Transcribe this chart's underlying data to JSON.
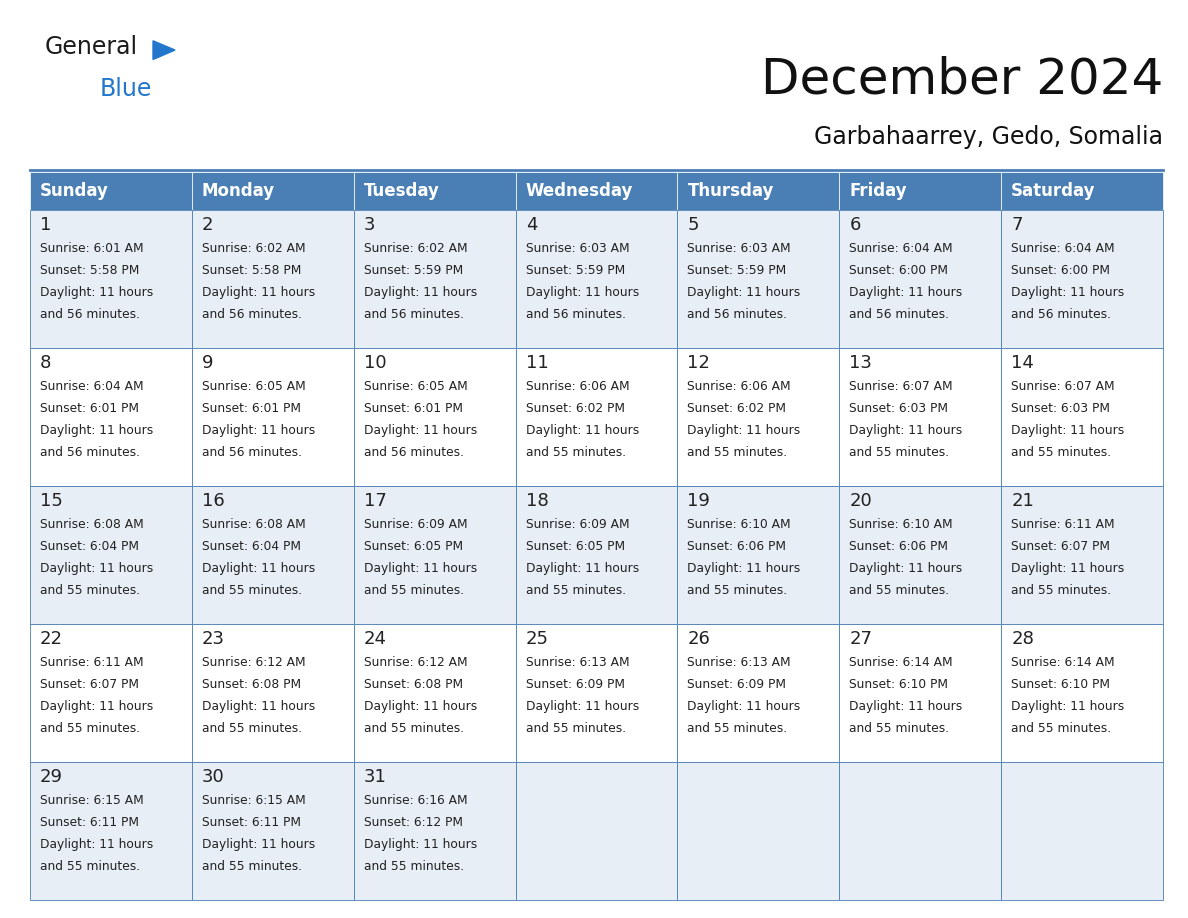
{
  "title": "December 2024",
  "subtitle": "Garbahaarrey, Gedo, Somalia",
  "header_color": "#4a7fb5",
  "header_text_color": "#ffffff",
  "row0_bg": "#e8eef5",
  "row1_bg": "#ffffff",
  "border_color": "#4a7fb5",
  "text_color": "#222222",
  "day_names": [
    "Sunday",
    "Monday",
    "Tuesday",
    "Wednesday",
    "Thursday",
    "Friday",
    "Saturday"
  ],
  "days_data": [
    {
      "day": 1,
      "col": 0,
      "row": 0,
      "sunrise": "6:01 AM",
      "sunset": "5:58 PM",
      "dl_hours": "11",
      "dl_min": "56"
    },
    {
      "day": 2,
      "col": 1,
      "row": 0,
      "sunrise": "6:02 AM",
      "sunset": "5:58 PM",
      "dl_hours": "11",
      "dl_min": "56"
    },
    {
      "day": 3,
      "col": 2,
      "row": 0,
      "sunrise": "6:02 AM",
      "sunset": "5:59 PM",
      "dl_hours": "11",
      "dl_min": "56"
    },
    {
      "day": 4,
      "col": 3,
      "row": 0,
      "sunrise": "6:03 AM",
      "sunset": "5:59 PM",
      "dl_hours": "11",
      "dl_min": "56"
    },
    {
      "day": 5,
      "col": 4,
      "row": 0,
      "sunrise": "6:03 AM",
      "sunset": "5:59 PM",
      "dl_hours": "11",
      "dl_min": "56"
    },
    {
      "day": 6,
      "col": 5,
      "row": 0,
      "sunrise": "6:04 AM",
      "sunset": "6:00 PM",
      "dl_hours": "11",
      "dl_min": "56"
    },
    {
      "day": 7,
      "col": 6,
      "row": 0,
      "sunrise": "6:04 AM",
      "sunset": "6:00 PM",
      "dl_hours": "11",
      "dl_min": "56"
    },
    {
      "day": 8,
      "col": 0,
      "row": 1,
      "sunrise": "6:04 AM",
      "sunset": "6:01 PM",
      "dl_hours": "11",
      "dl_min": "56"
    },
    {
      "day": 9,
      "col": 1,
      "row": 1,
      "sunrise": "6:05 AM",
      "sunset": "6:01 PM",
      "dl_hours": "11",
      "dl_min": "56"
    },
    {
      "day": 10,
      "col": 2,
      "row": 1,
      "sunrise": "6:05 AM",
      "sunset": "6:01 PM",
      "dl_hours": "11",
      "dl_min": "56"
    },
    {
      "day": 11,
      "col": 3,
      "row": 1,
      "sunrise": "6:06 AM",
      "sunset": "6:02 PM",
      "dl_hours": "11",
      "dl_min": "55"
    },
    {
      "day": 12,
      "col": 4,
      "row": 1,
      "sunrise": "6:06 AM",
      "sunset": "6:02 PM",
      "dl_hours": "11",
      "dl_min": "55"
    },
    {
      "day": 13,
      "col": 5,
      "row": 1,
      "sunrise": "6:07 AM",
      "sunset": "6:03 PM",
      "dl_hours": "11",
      "dl_min": "55"
    },
    {
      "day": 14,
      "col": 6,
      "row": 1,
      "sunrise": "6:07 AM",
      "sunset": "6:03 PM",
      "dl_hours": "11",
      "dl_min": "55"
    },
    {
      "day": 15,
      "col": 0,
      "row": 2,
      "sunrise": "6:08 AM",
      "sunset": "6:04 PM",
      "dl_hours": "11",
      "dl_min": "55"
    },
    {
      "day": 16,
      "col": 1,
      "row": 2,
      "sunrise": "6:08 AM",
      "sunset": "6:04 PM",
      "dl_hours": "11",
      "dl_min": "55"
    },
    {
      "day": 17,
      "col": 2,
      "row": 2,
      "sunrise": "6:09 AM",
      "sunset": "6:05 PM",
      "dl_hours": "11",
      "dl_min": "55"
    },
    {
      "day": 18,
      "col": 3,
      "row": 2,
      "sunrise": "6:09 AM",
      "sunset": "6:05 PM",
      "dl_hours": "11",
      "dl_min": "55"
    },
    {
      "day": 19,
      "col": 4,
      "row": 2,
      "sunrise": "6:10 AM",
      "sunset": "6:06 PM",
      "dl_hours": "11",
      "dl_min": "55"
    },
    {
      "day": 20,
      "col": 5,
      "row": 2,
      "sunrise": "6:10 AM",
      "sunset": "6:06 PM",
      "dl_hours": "11",
      "dl_min": "55"
    },
    {
      "day": 21,
      "col": 6,
      "row": 2,
      "sunrise": "6:11 AM",
      "sunset": "6:07 PM",
      "dl_hours": "11",
      "dl_min": "55"
    },
    {
      "day": 22,
      "col": 0,
      "row": 3,
      "sunrise": "6:11 AM",
      "sunset": "6:07 PM",
      "dl_hours": "11",
      "dl_min": "55"
    },
    {
      "day": 23,
      "col": 1,
      "row": 3,
      "sunrise": "6:12 AM",
      "sunset": "6:08 PM",
      "dl_hours": "11",
      "dl_min": "55"
    },
    {
      "day": 24,
      "col": 2,
      "row": 3,
      "sunrise": "6:12 AM",
      "sunset": "6:08 PM",
      "dl_hours": "11",
      "dl_min": "55"
    },
    {
      "day": 25,
      "col": 3,
      "row": 3,
      "sunrise": "6:13 AM",
      "sunset": "6:09 PM",
      "dl_hours": "11",
      "dl_min": "55"
    },
    {
      "day": 26,
      "col": 4,
      "row": 3,
      "sunrise": "6:13 AM",
      "sunset": "6:09 PM",
      "dl_hours": "11",
      "dl_min": "55"
    },
    {
      "day": 27,
      "col": 5,
      "row": 3,
      "sunrise": "6:14 AM",
      "sunset": "6:10 PM",
      "dl_hours": "11",
      "dl_min": "55"
    },
    {
      "day": 28,
      "col": 6,
      "row": 3,
      "sunrise": "6:14 AM",
      "sunset": "6:10 PM",
      "dl_hours": "11",
      "dl_min": "55"
    },
    {
      "day": 29,
      "col": 0,
      "row": 4,
      "sunrise": "6:15 AM",
      "sunset": "6:11 PM",
      "dl_hours": "11",
      "dl_min": "55"
    },
    {
      "day": 30,
      "col": 1,
      "row": 4,
      "sunrise": "6:15 AM",
      "sunset": "6:11 PM",
      "dl_hours": "11",
      "dl_min": "55"
    },
    {
      "day": 31,
      "col": 2,
      "row": 4,
      "sunrise": "6:16 AM",
      "sunset": "6:12 PM",
      "dl_hours": "11",
      "dl_min": "55"
    }
  ],
  "logo_text1": "General",
  "logo_text2": "Blue",
  "logo_color1": "#1a1a1a",
  "logo_color2": "#2277cc",
  "logo_triangle_color": "#2277cc",
  "fig_width": 11.88,
  "fig_height": 9.18,
  "dpi": 100
}
